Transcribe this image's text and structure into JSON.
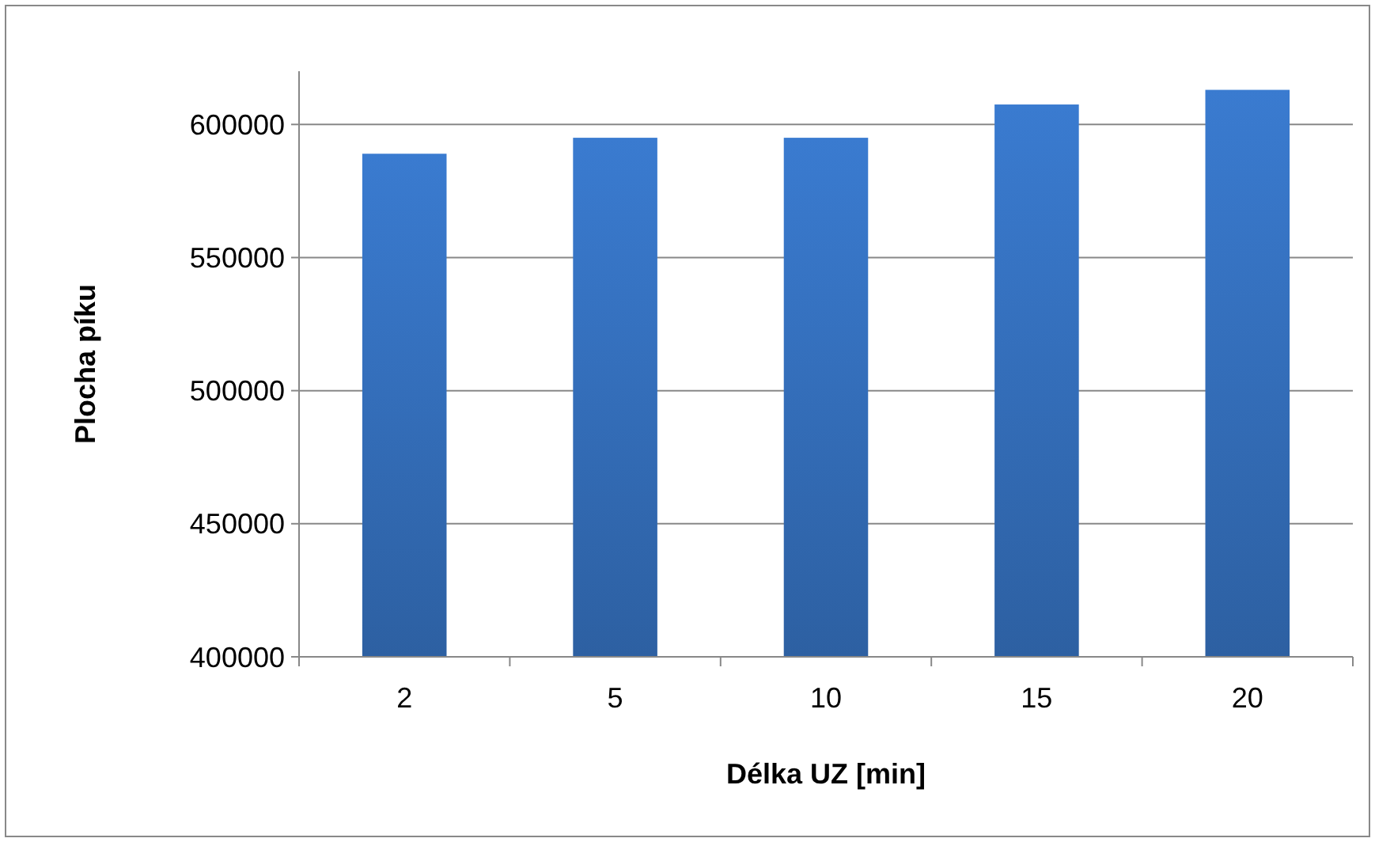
{
  "chart_data": {
    "type": "bar",
    "xlabel": "Délka UZ [min]",
    "ylabel": "Plocha píku",
    "categories": [
      "2",
      "5",
      "10",
      "15",
      "20"
    ],
    "values": [
      589000,
      595000,
      595000,
      607500,
      613000
    ],
    "color": "#3a7bd0",
    "ylim": [
      400000,
      620000
    ],
    "yticks": [
      400000,
      450000,
      500000,
      550000,
      600000
    ],
    "grid": "y"
  }
}
